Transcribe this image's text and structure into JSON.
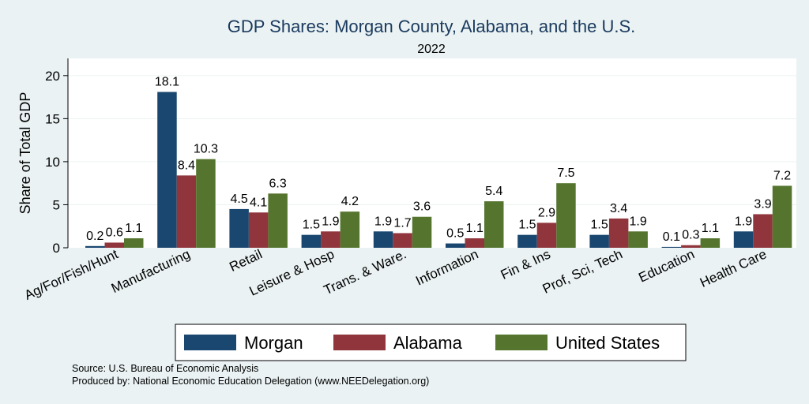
{
  "chart_data": {
    "type": "bar",
    "title": "GDP Shares: Morgan County, Alabama, and the U.S.",
    "subtitle": "2022",
    "ylabel": "Share of Total GDP",
    "xlabel": "",
    "ylim": [
      0,
      22
    ],
    "yticks": [
      0,
      5,
      10,
      15,
      20
    ],
    "grid": true,
    "legend_position": "bottom",
    "categories": [
      "Ag/For/Fish/Hunt",
      "Manufacturing",
      "Retail",
      "Leisure & Hosp",
      "Trans. & Ware.",
      "Information",
      "Fin & Ins",
      "Prof, Sci, Tech",
      "Education",
      "Health Care"
    ],
    "series": [
      {
        "name": "Morgan",
        "color": "#1a476f",
        "values": [
          0.2,
          18.1,
          4.5,
          1.5,
          1.9,
          0.5,
          1.5,
          1.5,
          0.1,
          1.9
        ]
      },
      {
        "name": "Alabama",
        "color": "#90353b",
        "values": [
          0.6,
          8.4,
          4.1,
          1.9,
          1.7,
          1.1,
          2.9,
          3.4,
          0.3,
          3.9
        ]
      },
      {
        "name": "United States",
        "color": "#55752f",
        "values": [
          1.1,
          10.3,
          6.3,
          4.2,
          3.6,
          5.4,
          7.5,
          1.9,
          1.1,
          7.2
        ]
      }
    ],
    "source_lines": [
      "Source: U.S. Bureau of Economic Analysis",
      "Produced by: National Economic Education Delegation (www.NEEDelegation.org)"
    ]
  }
}
